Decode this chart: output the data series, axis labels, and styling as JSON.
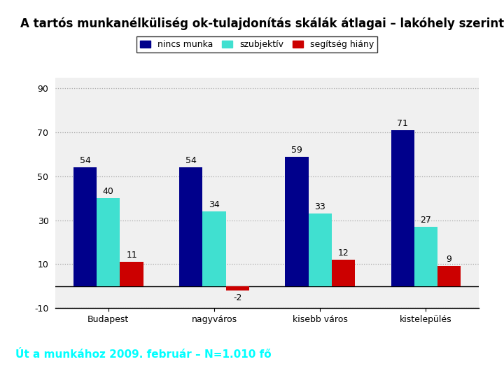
{
  "title": "A tartós munkanélküliség ok-tulajdonítás skálák átlagai – lakóhely szerint",
  "categories": [
    "Budapest",
    "nagyváros",
    "kisebb város",
    "kistelepülés"
  ],
  "series": [
    {
      "label": "nincs munka",
      "color": "#00008B",
      "values": [
        54,
        54,
        59,
        71
      ]
    },
    {
      "label": "szubjektív",
      "color": "#40E0D0",
      "values": [
        40,
        34,
        33,
        27
      ]
    },
    {
      "label": "segítség hiány",
      "color": "#CC0000",
      "values": [
        11,
        -2,
        12,
        9
      ]
    }
  ],
  "ylim": [
    -10,
    95
  ],
  "yticks": [
    -10,
    10,
    30,
    50,
    70,
    90
  ],
  "grid_color": "#aaaaaa",
  "bar_width": 0.22,
  "footer_text": "Út a munkához 2009. február – N=1.010 fő",
  "footer_bg": "#1B3A5C",
  "footer_text_color": "#00FFFF",
  "plot_bg": "#f0f0f0",
  "chart_bg": "#ffffff",
  "outer_bg": "#ffffff",
  "title_fontsize": 12,
  "legend_fontsize": 9,
  "axis_fontsize": 9,
  "label_fontsize": 9,
  "frame_color": "#000000",
  "frame_lw": 2.5
}
